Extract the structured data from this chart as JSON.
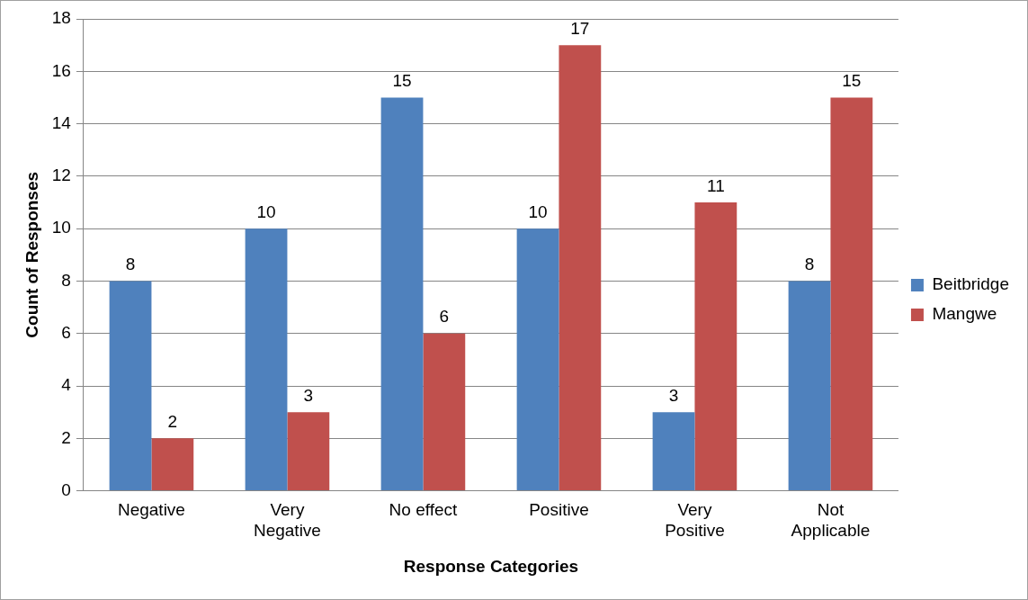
{
  "chart_data": {
    "type": "bar",
    "xlabel": "Response Categories",
    "ylabel": "Count of Responses",
    "categories": [
      "Negative",
      "Very Negative",
      "No effect",
      "Positive",
      "Very Positive",
      "Not Applicable"
    ],
    "series": [
      {
        "name": "Beitbridge",
        "color": "#4f81bd",
        "values": [
          8,
          10,
          15,
          10,
          3,
          8
        ]
      },
      {
        "name": "Mangwe",
        "color": "#c0504d",
        "values": [
          2,
          3,
          6,
          17,
          11,
          15
        ]
      }
    ],
    "ylim": [
      0,
      18
    ],
    "yticks": [
      0,
      2,
      4,
      6,
      8,
      10,
      12,
      14,
      16,
      18
    ],
    "grid": "y",
    "legend": "right",
    "data_labels": true
  }
}
